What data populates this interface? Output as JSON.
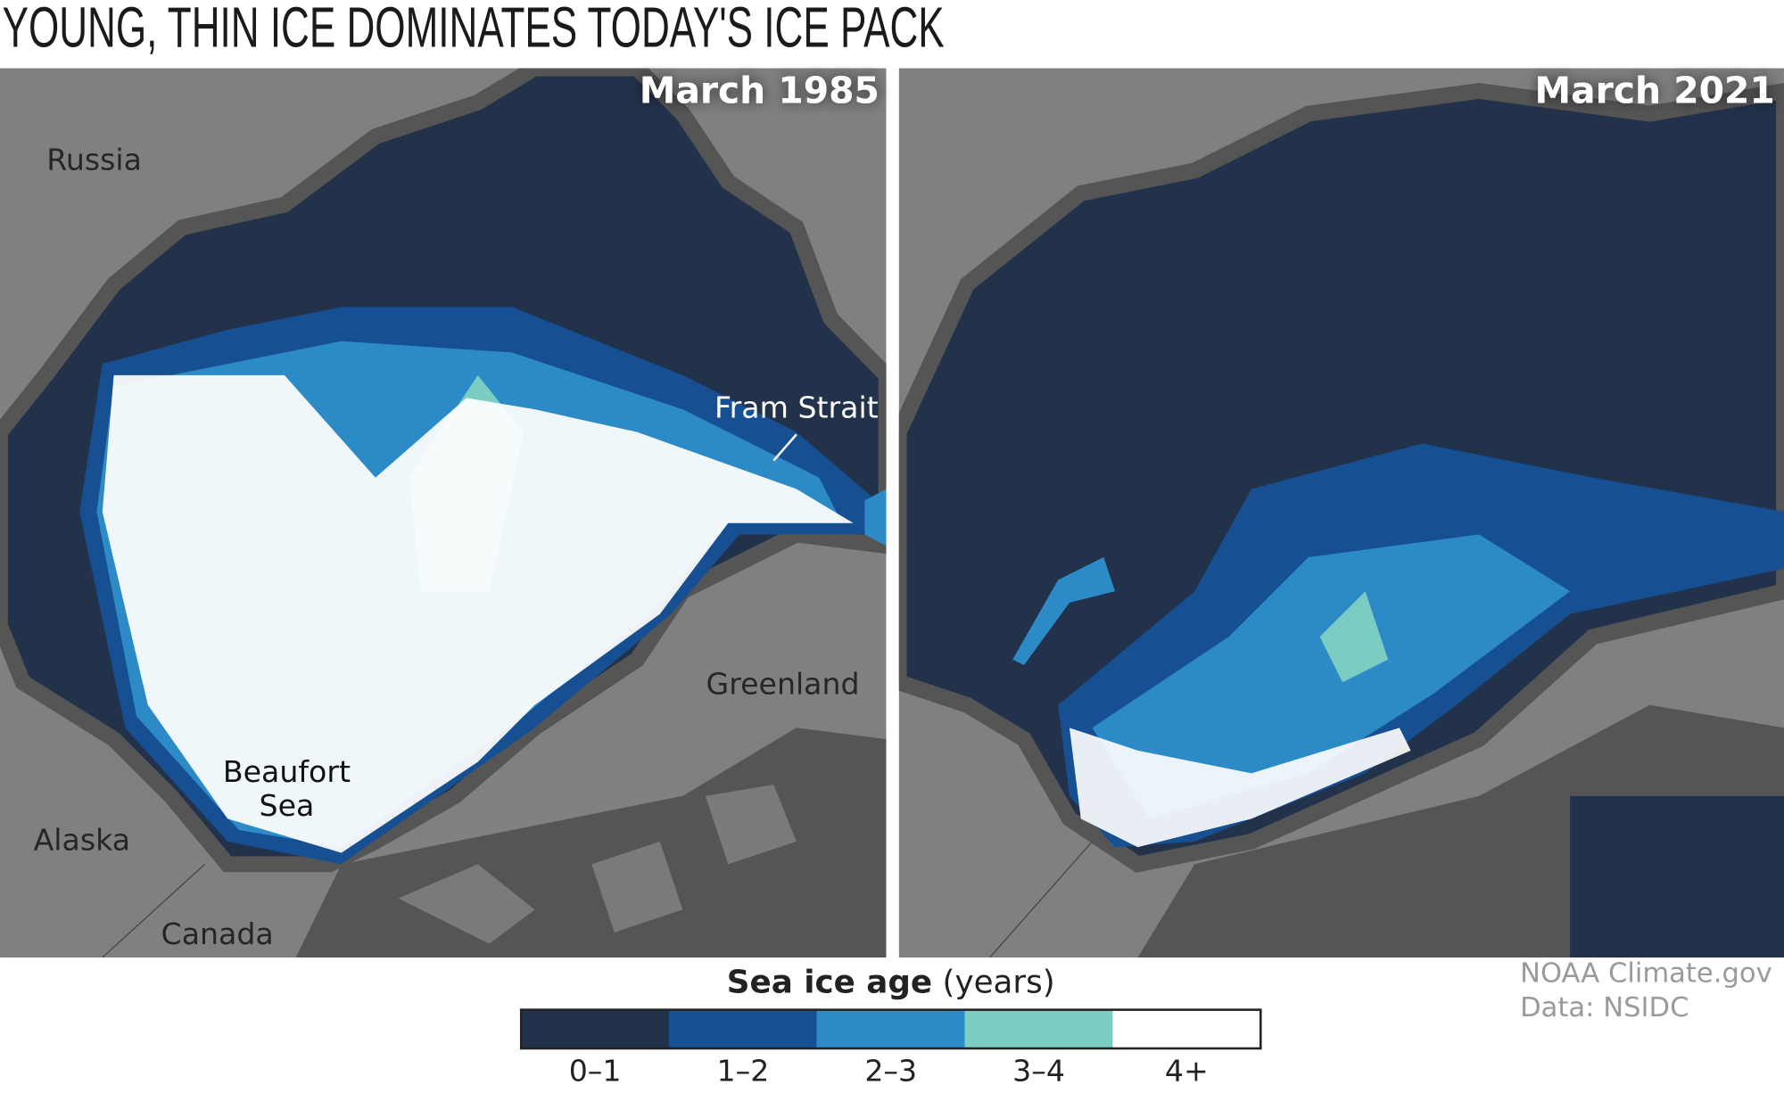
{
  "title": "YOUNG, THIN ICE DOMINATES TODAY'S ICE PACK",
  "panels": [
    {
      "label": "March 1985",
      "places": {
        "russia": "Russia",
        "fram": "Fram Strait",
        "greenland": "Greenland",
        "beaufort": [
          "Beaufort",
          "Sea"
        ],
        "alaska": "Alaska",
        "canada": "Canada"
      }
    },
    {
      "label": "March 2021"
    }
  ],
  "legend": {
    "title": "Sea ice age",
    "unit": "(years)",
    "items": [
      {
        "label": "0–1",
        "color": "#23324b"
      },
      {
        "label": "1–2",
        "color": "#164f92"
      },
      {
        "label": "2–3",
        "color": "#2c8ac6"
      },
      {
        "label": "3–4",
        "color": "#7bcdc4"
      },
      {
        "label": "4+",
        "color": "#ffffff"
      }
    ]
  },
  "credit": [
    "NOAA Climate.gov",
    "Data: NSIDC"
  ]
}
